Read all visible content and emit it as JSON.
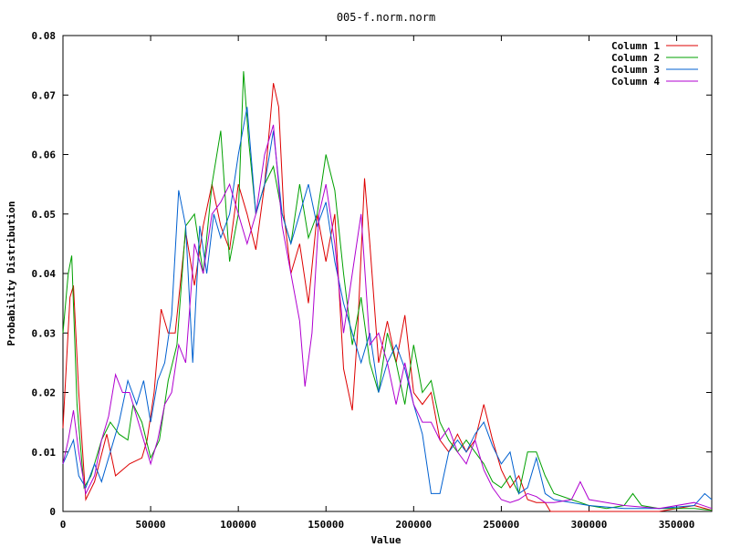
{
  "chart_data": {
    "type": "line",
    "title": "005-f.norm.norm",
    "xlabel": "Value",
    "ylabel": "Probability Distribution",
    "xlim": [
      0,
      370000
    ],
    "ylim": [
      0,
      0.08
    ],
    "xticks": [
      0,
      50000,
      100000,
      150000,
      200000,
      250000,
      300000,
      350000
    ],
    "xtick_labels": [
      "0",
      "50000",
      "100000",
      "150000",
      "200000",
      "250000",
      "300000",
      "350000"
    ],
    "yticks": [
      0,
      0.01,
      0.02,
      0.03,
      0.04,
      0.05,
      0.06,
      0.07,
      0.08
    ],
    "ytick_labels": [
      "0",
      "0.01",
      "0.02",
      "0.03",
      "0.04",
      "0.05",
      "0.06",
      "0.07",
      "0.08"
    ],
    "grid": false,
    "legend_position": "top-right",
    "series": [
      {
        "name": "Column 1",
        "color": "#dd0000",
        "points": [
          [
            0,
            0.014
          ],
          [
            4000,
            0.036
          ],
          [
            6000,
            0.038
          ],
          [
            9000,
            0.02
          ],
          [
            13000,
            0.002
          ],
          [
            18000,
            0.005
          ],
          [
            25000,
            0.013
          ],
          [
            30000,
            0.006
          ],
          [
            38000,
            0.008
          ],
          [
            45000,
            0.009
          ],
          [
            48000,
            0.012
          ],
          [
            52000,
            0.02
          ],
          [
            56000,
            0.034
          ],
          [
            60000,
            0.03
          ],
          [
            64000,
            0.03
          ],
          [
            70000,
            0.047
          ],
          [
            75000,
            0.038
          ],
          [
            80000,
            0.048
          ],
          [
            85000,
            0.055
          ],
          [
            90000,
            0.048
          ],
          [
            95000,
            0.044
          ],
          [
            100000,
            0.055
          ],
          [
            105000,
            0.05
          ],
          [
            110000,
            0.044
          ],
          [
            115000,
            0.055
          ],
          [
            120000,
            0.072
          ],
          [
            123000,
            0.068
          ],
          [
            126000,
            0.05
          ],
          [
            130000,
            0.04
          ],
          [
            135000,
            0.045
          ],
          [
            140000,
            0.035
          ],
          [
            145000,
            0.05
          ],
          [
            150000,
            0.042
          ],
          [
            155000,
            0.05
          ],
          [
            160000,
            0.024
          ],
          [
            165000,
            0.017
          ],
          [
            168000,
            0.03
          ],
          [
            172000,
            0.056
          ],
          [
            175000,
            0.045
          ],
          [
            180000,
            0.025
          ],
          [
            185000,
            0.032
          ],
          [
            190000,
            0.025
          ],
          [
            195000,
            0.033
          ],
          [
            200000,
            0.02
          ],
          [
            205000,
            0.018
          ],
          [
            210000,
            0.02
          ],
          [
            215000,
            0.012
          ],
          [
            220000,
            0.01
          ],
          [
            225000,
            0.013
          ],
          [
            230000,
            0.01
          ],
          [
            235000,
            0.012
          ],
          [
            240000,
            0.018
          ],
          [
            245000,
            0.012
          ],
          [
            250000,
            0.007
          ],
          [
            255000,
            0.004
          ],
          [
            260000,
            0.006
          ],
          [
            265000,
            0.002
          ],
          [
            270000,
            0.0015
          ],
          [
            275000,
            0.0015
          ],
          [
            278000,
            0.0
          ],
          [
            300000,
            0.0
          ],
          [
            340000,
            0.0
          ],
          [
            350000,
            0.0005
          ],
          [
            360000,
            0.001
          ],
          [
            370000,
            0.0002
          ]
        ]
      },
      {
        "name": "Column 2",
        "color": "#00a000",
        "points": [
          [
            0,
            0.03
          ],
          [
            3000,
            0.04
          ],
          [
            5000,
            0.043
          ],
          [
            8000,
            0.018
          ],
          [
            12000,
            0.004
          ],
          [
            16000,
            0.006
          ],
          [
            22000,
            0.012
          ],
          [
            27000,
            0.015
          ],
          [
            32000,
            0.013
          ],
          [
            37000,
            0.012
          ],
          [
            40000,
            0.018
          ],
          [
            45000,
            0.015
          ],
          [
            50000,
            0.009
          ],
          [
            55000,
            0.012
          ],
          [
            60000,
            0.022
          ],
          [
            65000,
            0.028
          ],
          [
            70000,
            0.048
          ],
          [
            75000,
            0.05
          ],
          [
            80000,
            0.04
          ],
          [
            85000,
            0.055
          ],
          [
            90000,
            0.064
          ],
          [
            95000,
            0.042
          ],
          [
            100000,
            0.05
          ],
          [
            103000,
            0.074
          ],
          [
            106000,
            0.062
          ],
          [
            110000,
            0.05
          ],
          [
            115000,
            0.055
          ],
          [
            120000,
            0.058
          ],
          [
            125000,
            0.05
          ],
          [
            130000,
            0.045
          ],
          [
            135000,
            0.055
          ],
          [
            140000,
            0.046
          ],
          [
            145000,
            0.05
          ],
          [
            150000,
            0.06
          ],
          [
            155000,
            0.054
          ],
          [
            160000,
            0.04
          ],
          [
            165000,
            0.028
          ],
          [
            170000,
            0.036
          ],
          [
            175000,
            0.025
          ],
          [
            180000,
            0.02
          ],
          [
            185000,
            0.03
          ],
          [
            190000,
            0.025
          ],
          [
            195000,
            0.018
          ],
          [
            200000,
            0.028
          ],
          [
            205000,
            0.02
          ],
          [
            210000,
            0.022
          ],
          [
            215000,
            0.015
          ],
          [
            220000,
            0.012
          ],
          [
            225000,
            0.01
          ],
          [
            230000,
            0.012
          ],
          [
            235000,
            0.01
          ],
          [
            240000,
            0.008
          ],
          [
            245000,
            0.005
          ],
          [
            250000,
            0.004
          ],
          [
            255000,
            0.006
          ],
          [
            260000,
            0.003
          ],
          [
            265000,
            0.01
          ],
          [
            270000,
            0.01
          ],
          [
            275000,
            0.006
          ],
          [
            280000,
            0.003
          ],
          [
            290000,
            0.002
          ],
          [
            300000,
            0.001
          ],
          [
            310000,
            0.0005
          ],
          [
            320000,
            0.001
          ],
          [
            325000,
            0.003
          ],
          [
            330000,
            0.001
          ],
          [
            340000,
            0.0005
          ],
          [
            360000,
            0.0005
          ],
          [
            370000,
            0.0002
          ]
        ]
      },
      {
        "name": "Column 3",
        "color": "#0060d0",
        "points": [
          [
            0,
            0.008
          ],
          [
            3000,
            0.01
          ],
          [
            6000,
            0.012
          ],
          [
            9000,
            0.006
          ],
          [
            13000,
            0.004
          ],
          [
            18000,
            0.008
          ],
          [
            22000,
            0.005
          ],
          [
            27000,
            0.01
          ],
          [
            32000,
            0.015
          ],
          [
            37000,
            0.022
          ],
          [
            42000,
            0.018
          ],
          [
            46000,
            0.022
          ],
          [
            50000,
            0.015
          ],
          [
            54000,
            0.022
          ],
          [
            58000,
            0.025
          ],
          [
            62000,
            0.033
          ],
          [
            66000,
            0.054
          ],
          [
            70000,
            0.048
          ],
          [
            74000,
            0.025
          ],
          [
            78000,
            0.048
          ],
          [
            82000,
            0.04
          ],
          [
            86000,
            0.05
          ],
          [
            90000,
            0.046
          ],
          [
            95000,
            0.05
          ],
          [
            100000,
            0.06
          ],
          [
            105000,
            0.068
          ],
          [
            110000,
            0.05
          ],
          [
            115000,
            0.055
          ],
          [
            120000,
            0.064
          ],
          [
            125000,
            0.05
          ],
          [
            130000,
            0.045
          ],
          [
            135000,
            0.05
          ],
          [
            140000,
            0.055
          ],
          [
            145000,
            0.048
          ],
          [
            150000,
            0.052
          ],
          [
            155000,
            0.042
          ],
          [
            160000,
            0.035
          ],
          [
            165000,
            0.03
          ],
          [
            170000,
            0.025
          ],
          [
            175000,
            0.03
          ],
          [
            180000,
            0.02
          ],
          [
            185000,
            0.025
          ],
          [
            190000,
            0.028
          ],
          [
            195000,
            0.024
          ],
          [
            200000,
            0.018
          ],
          [
            205000,
            0.013
          ],
          [
            210000,
            0.003
          ],
          [
            215000,
            0.003
          ],
          [
            220000,
            0.01
          ],
          [
            225000,
            0.012
          ],
          [
            230000,
            0.01
          ],
          [
            235000,
            0.013
          ],
          [
            240000,
            0.015
          ],
          [
            245000,
            0.011
          ],
          [
            250000,
            0.008
          ],
          [
            255000,
            0.01
          ],
          [
            260000,
            0.003
          ],
          [
            265000,
            0.004
          ],
          [
            270000,
            0.009
          ],
          [
            275000,
            0.003
          ],
          [
            280000,
            0.002
          ],
          [
            290000,
            0.0015
          ],
          [
            300000,
            0.001
          ],
          [
            320000,
            0.0005
          ],
          [
            340000,
            0.0005
          ],
          [
            360000,
            0.001
          ],
          [
            366000,
            0.003
          ],
          [
            370000,
            0.002
          ]
        ]
      },
      {
        "name": "Column 4",
        "color": "#b000d0",
        "points": [
          [
            0,
            0.008
          ],
          [
            3000,
            0.012
          ],
          [
            6000,
            0.017
          ],
          [
            9000,
            0.01
          ],
          [
            13000,
            0.003
          ],
          [
            18000,
            0.006
          ],
          [
            22000,
            0.012
          ],
          [
            26000,
            0.016
          ],
          [
            30000,
            0.023
          ],
          [
            34000,
            0.02
          ],
          [
            38000,
            0.02
          ],
          [
            42000,
            0.016
          ],
          [
            46000,
            0.012
          ],
          [
            50000,
            0.008
          ],
          [
            54000,
            0.012
          ],
          [
            58000,
            0.018
          ],
          [
            62000,
            0.02
          ],
          [
            66000,
            0.028
          ],
          [
            70000,
            0.025
          ],
          [
            75000,
            0.045
          ],
          [
            80000,
            0.04
          ],
          [
            85000,
            0.05
          ],
          [
            90000,
            0.052
          ],
          [
            95000,
            0.055
          ],
          [
            100000,
            0.05
          ],
          [
            105000,
            0.045
          ],
          [
            110000,
            0.05
          ],
          [
            115000,
            0.06
          ],
          [
            120000,
            0.065
          ],
          [
            125000,
            0.048
          ],
          [
            130000,
            0.04
          ],
          [
            135000,
            0.032
          ],
          [
            138000,
            0.021
          ],
          [
            142000,
            0.03
          ],
          [
            146000,
            0.05
          ],
          [
            150000,
            0.055
          ],
          [
            155000,
            0.045
          ],
          [
            160000,
            0.03
          ],
          [
            165000,
            0.04
          ],
          [
            170000,
            0.05
          ],
          [
            175000,
            0.028
          ],
          [
            180000,
            0.03
          ],
          [
            185000,
            0.025
          ],
          [
            190000,
            0.018
          ],
          [
            195000,
            0.025
          ],
          [
            200000,
            0.018
          ],
          [
            205000,
            0.015
          ],
          [
            210000,
            0.015
          ],
          [
            215000,
            0.012
          ],
          [
            220000,
            0.014
          ],
          [
            225000,
            0.01
          ],
          [
            230000,
            0.008
          ],
          [
            235000,
            0.012
          ],
          [
            240000,
            0.007
          ],
          [
            245000,
            0.004
          ],
          [
            250000,
            0.002
          ],
          [
            255000,
            0.0015
          ],
          [
            260000,
            0.002
          ],
          [
            265000,
            0.003
          ],
          [
            270000,
            0.0025
          ],
          [
            275000,
            0.0015
          ],
          [
            280000,
            0.0015
          ],
          [
            290000,
            0.002
          ],
          [
            295000,
            0.005
          ],
          [
            300000,
            0.002
          ],
          [
            310000,
            0.0015
          ],
          [
            320000,
            0.001
          ],
          [
            340000,
            0.0005
          ],
          [
            360000,
            0.0015
          ],
          [
            370000,
            0.0005
          ]
        ]
      }
    ]
  }
}
